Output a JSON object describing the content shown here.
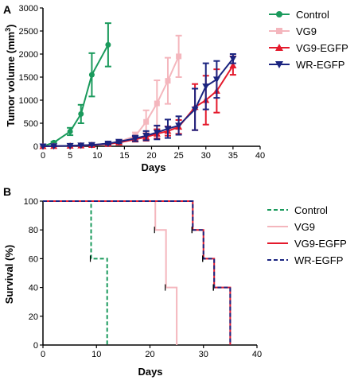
{
  "chart_data": [
    {
      "panel": "A",
      "type": "line",
      "xlabel": "Days",
      "ylabel": "Tumor volume (mm",
      "ylabel_sup": "3",
      "ylabel_close": ")",
      "xlim": [
        0,
        40
      ],
      "ylim": [
        0,
        3000
      ],
      "xticks": [
        0,
        5,
        10,
        15,
        20,
        25,
        30,
        35,
        40
      ],
      "yticks": [
        0,
        500,
        1000,
        1500,
        2000,
        2500,
        3000
      ],
      "grid": false,
      "legend_position": "right",
      "series": [
        {
          "name": "Control",
          "color": "#1a9a5c",
          "marker": "circle",
          "x": [
            0,
            2,
            5,
            7,
            9,
            12
          ],
          "y": [
            0,
            80,
            320,
            700,
            1550,
            2200
          ],
          "err": [
            0,
            20,
            80,
            200,
            470,
            470
          ]
        },
        {
          "name": "VG9",
          "color": "#f4b6bd",
          "marker": "square",
          "x": [
            0,
            2,
            5,
            7,
            9,
            12,
            14,
            17,
            19,
            21,
            23,
            25
          ],
          "y": [
            0,
            5,
            10,
            20,
            30,
            60,
            100,
            220,
            530,
            930,
            1420,
            1950
          ],
          "err": [
            0,
            5,
            5,
            10,
            10,
            20,
            30,
            80,
            250,
            500,
            500,
            450
          ]
        },
        {
          "name": "VG9-EGFP",
          "color": "#e41a2c",
          "marker": "triangle-up",
          "x": [
            0,
            2,
            5,
            7,
            9,
            12,
            14,
            17,
            19,
            21,
            23,
            25,
            28,
            30,
            32,
            35
          ],
          "y": [
            0,
            5,
            10,
            15,
            25,
            50,
            80,
            150,
            200,
            270,
            330,
            420,
            850,
            1000,
            1200,
            1750
          ],
          "err": [
            0,
            5,
            5,
            5,
            10,
            20,
            30,
            50,
            80,
            100,
            100,
            150,
            500,
            530,
            470,
            200
          ]
        },
        {
          "name": "WR-EGFP",
          "color": "#1b2480",
          "marker": "triangle-down",
          "x": [
            0,
            2,
            5,
            7,
            9,
            12,
            14,
            17,
            19,
            21,
            23,
            25,
            28,
            30,
            32,
            35
          ],
          "y": [
            0,
            5,
            10,
            20,
            30,
            60,
            100,
            170,
            230,
            300,
            380,
            450,
            800,
            1300,
            1450,
            1900
          ],
          "err": [
            0,
            5,
            5,
            10,
            10,
            20,
            30,
            60,
            100,
            150,
            200,
            200,
            450,
            500,
            400,
            100
          ]
        }
      ]
    },
    {
      "panel": "B",
      "type": "line",
      "subtype": "step",
      "xlabel": "Days",
      "ylabel": "Survival (%)",
      "xlim": [
        0,
        40
      ],
      "ylim": [
        0,
        100
      ],
      "xticks": [
        0,
        10,
        20,
        30,
        40
      ],
      "yticks": [
        0,
        20,
        40,
        60,
        80,
        100
      ],
      "grid": false,
      "legend_position": "right",
      "series": [
        {
          "name": "Control",
          "color": "#1a9a5c",
          "dash": "dashed",
          "x": [
            0,
            9,
            12
          ],
          "y": [
            100,
            60,
            0
          ]
        },
        {
          "name": "VG9",
          "color": "#f4b6bd",
          "dash": "solid",
          "x": [
            0,
            21,
            23,
            25
          ],
          "y": [
            100,
            80,
            40,
            0
          ]
        },
        {
          "name": "VG9-EGFP",
          "color": "#e41a2c",
          "dash": "solid",
          "x": [
            0,
            28,
            30,
            32,
            35
          ],
          "y": [
            100,
            80,
            60,
            40,
            0
          ]
        },
        {
          "name": "WR-EGFP",
          "color": "#1b2480",
          "dash": "dashed",
          "x": [
            0,
            28,
            30,
            32,
            35
          ],
          "y": [
            100,
            80,
            60,
            40,
            0
          ]
        }
      ]
    }
  ]
}
